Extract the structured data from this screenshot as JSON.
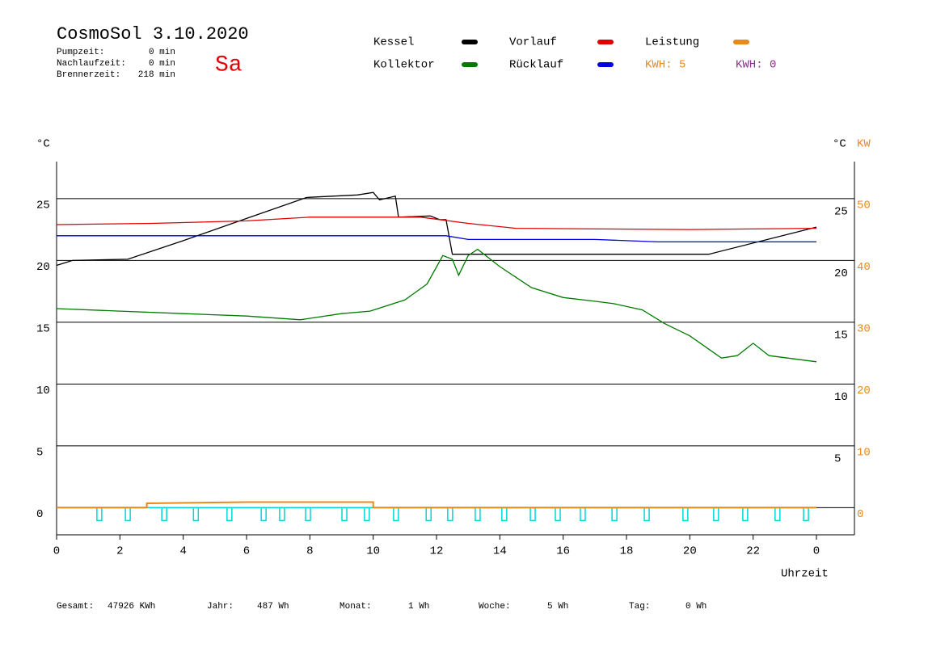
{
  "header": {
    "title": "CosmoSol 3.10.2020",
    "day": "Sa",
    "stats": [
      {
        "label": "Pumpzeit:",
        "value": "0 min"
      },
      {
        "label": "Nachlaufzeit:",
        "value": "0 min"
      },
      {
        "label": "Brennerzeit:",
        "value": "218 min"
      }
    ],
    "kwh": [
      {
        "text": "KWH: 5",
        "color": "#e88a1a"
      },
      {
        "text": "KWH: 0",
        "color": "#8a2d8a"
      }
    ]
  },
  "chart_data": {
    "type": "line",
    "y_unit": "°C",
    "y_unit_right": "°C",
    "y2_unit": "KW",
    "x_label": "Uhrzeit",
    "xlim": [
      0,
      25.2
    ],
    "xticks": [
      0,
      2,
      4,
      6,
      8,
      10,
      12,
      14,
      16,
      18,
      20,
      22,
      {
        "value": 24,
        "label": "0"
      }
    ],
    "ylim": [
      -2.2,
      28
    ],
    "yticks": [
      0,
      5,
      10,
      15,
      20,
      25
    ],
    "yticks_right": [
      5,
      10,
      15,
      20,
      25
    ],
    "y2lim": [
      -4.4,
      56
    ],
    "y2ticks": [
      0,
      10,
      20,
      30,
      40,
      50
    ],
    "y2_color": "#e88a1a",
    "grid": true,
    "series": [
      {
        "name": "Kessel",
        "color": "#000000",
        "x": [
          0,
          0.5,
          2.25,
          4,
          6,
          7.9,
          9.5,
          10,
          10.2,
          10.7,
          10.8,
          11.8,
          12.1,
          12.3,
          12.5,
          20.6,
          24
        ],
        "values": [
          19.6,
          20.0,
          20.1,
          21.6,
          23.4,
          25.1,
          25.3,
          25.5,
          24.9,
          25.2,
          23.5,
          23.6,
          23.3,
          23.3,
          20.5,
          20.5,
          22.7
        ]
      },
      {
        "name": "Vorlauf",
        "color": "#e00000",
        "x": [
          0,
          3,
          6,
          8,
          11.5,
          13,
          14.5,
          20,
          24
        ],
        "values": [
          22.9,
          23.0,
          23.2,
          23.5,
          23.5,
          23.0,
          22.6,
          22.5,
          22.6
        ]
      },
      {
        "name": "Leistung",
        "color": "#e88a1a",
        "axis": "y2",
        "x": [
          0,
          2.85,
          2.85,
          6,
          10,
          10,
          24
        ],
        "values": [
          0,
          0,
          0.7,
          0.9,
          0.9,
          0,
          0
        ]
      },
      {
        "name": "Kollektor",
        "color": "#007a00",
        "x": [
          0,
          2,
          4,
          6,
          7.7,
          9,
          9.9,
          11,
          11.7,
          12.2,
          12.5,
          12.7,
          13,
          13.3,
          14,
          15,
          16,
          17,
          17.6,
          18.5,
          19.2,
          20,
          21,
          21.5,
          22,
          22.5,
          24
        ],
        "values": [
          16.1,
          15.9,
          15.7,
          15.5,
          15.2,
          15.7,
          15.9,
          16.8,
          18.1,
          20.4,
          20.1,
          18.8,
          20.4,
          20.9,
          19.5,
          17.8,
          17.0,
          16.7,
          16.5,
          16.0,
          14.9,
          13.9,
          12.1,
          12.3,
          13.3,
          12.3,
          11.8
        ]
      },
      {
        "name": "Rücklauf",
        "color": "#0000e0",
        "x": [
          0,
          12.3,
          13,
          17,
          19,
          24
        ],
        "values": [
          22.0,
          22.0,
          21.7,
          21.7,
          21.5,
          21.5
        ]
      }
    ],
    "pump": {
      "color": "#00d8d8",
      "x": [
        1.35,
        2.25,
        3.4,
        4.4,
        5.46,
        6.54,
        7.12,
        7.94,
        9.09,
        9.8,
        10.72,
        11.75,
        12.43,
        13.3,
        14.14,
        15.04,
        15.83,
        16.62,
        17.62,
        18.64,
        19.86,
        20.83,
        21.75,
        22.77,
        23.67
      ]
    }
  },
  "footer": [
    {
      "label": "Gesamt:",
      "value": "47926 KWh"
    },
    {
      "label": "Jahr:",
      "value": "487 Wh"
    },
    {
      "label": "Monat:",
      "value": "1 Wh"
    },
    {
      "label": "Woche:",
      "value": "5 Wh"
    },
    {
      "label": "Tag:",
      "value": "0 Wh"
    }
  ]
}
